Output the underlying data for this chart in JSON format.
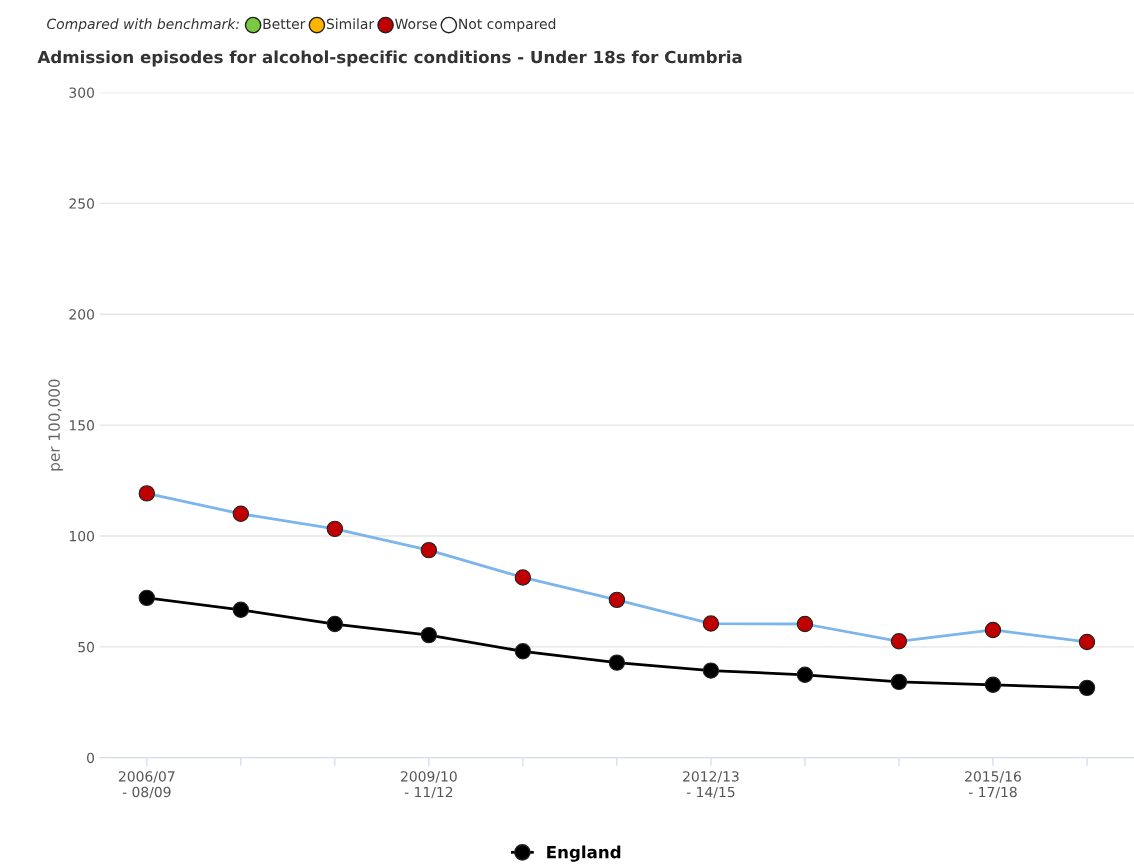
{
  "chart_data": {
    "type": "line",
    "title": "Admission episodes for alcohol-specific conditions - Under 18s for Cumbria",
    "ylabel": "per 100,000",
    "annotations": [
      "Compared with benchmark:",
      "Better",
      "Similar",
      "Worse",
      "Not compared"
    ],
    "categories": [
      "2006/07\n- 08/09",
      null,
      null,
      "2009/10\n- 11/12",
      null,
      null,
      "2012/13\n- 14/15",
      null,
      null,
      "2015/16\n- 17/18",
      null
    ],
    "series": [
      {
        "color": "#7cb5ec",
        "colors": [
          "#c00000",
          "#c00000",
          "#c00000",
          "#c00000",
          "#c00000",
          "#c00000",
          "#c00000",
          "#c00000",
          "#c00000",
          "#c00000",
          "#c00000"
        ],
        "values": [
          119.2,
          110,
          103.2,
          93.6,
          81.3,
          71.2,
          60.5,
          60.3,
          52.5,
          57.6,
          52.2
        ]
      },
      {
        "name": "England",
        "color": "#000000",
        "values": [
          72.1,
          66.7,
          60.3,
          55.3,
          48,
          42.9,
          39.3,
          37.4,
          34.2,
          32.9,
          31.5
        ]
      }
    ],
    "ylim": [
      0,
      300
    ],
    "yticks": [
      0,
      50,
      100,
      150,
      200,
      250,
      300
    ],
    "grid": "y",
    "legend": "bottom",
    "marker": "circle",
    "line_style": "solid"
  }
}
